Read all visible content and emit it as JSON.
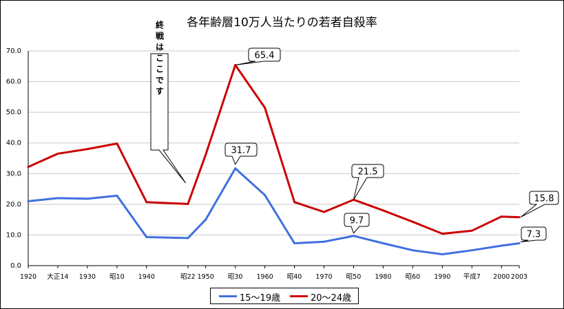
{
  "chart_data": {
    "type": "line",
    "title": "各年齢層10万人当たりの若者自殺率",
    "xlabel": "",
    "ylabel": "",
    "ylim": [
      0,
      70
    ],
    "yticks": [
      "0.0",
      "10.0",
      "20.0",
      "30.0",
      "40.0",
      "50.0",
      "60.0",
      "70.0"
    ],
    "categories": [
      "1920",
      "大正14",
      "1930",
      "昭10",
      "1940",
      "昭22",
      "1950",
      "昭30",
      "1960",
      "昭40",
      "1970",
      "昭50",
      "1980",
      "昭60",
      "1990",
      "平成7",
      "2000",
      "2003"
    ],
    "x": [
      1920,
      1925,
      1930,
      1935,
      1940,
      1947,
      1950,
      1955,
      1960,
      1965,
      1970,
      1975,
      1980,
      1985,
      1990,
      1995,
      2000,
      2003
    ],
    "series": [
      {
        "name": "15～19歳",
        "color": "#3f6fe0",
        "x": [
          1920,
          1925,
          1930,
          1935,
          1940,
          1947,
          1950,
          1955,
          1960,
          1965,
          1970,
          1975,
          1980,
          1985,
          1990,
          1995,
          2000,
          2003
        ],
        "values": [
          21.0,
          22.0,
          21.8,
          22.8,
          9.3,
          9.0,
          15.0,
          31.7,
          23.0,
          7.3,
          7.8,
          9.7,
          7.3,
          5.0,
          3.7,
          5.0,
          6.5,
          7.3
        ]
      },
      {
        "name": "20～24歳",
        "color": "#cc0000",
        "x": [
          1920,
          1925,
          1930,
          1935,
          1940,
          1947,
          1950,
          1955,
          1960,
          1965,
          1970,
          1975,
          1980,
          1985,
          1990,
          1995,
          2000,
          2003
        ],
        "values": [
          32.2,
          36.5,
          38.0,
          39.8,
          20.7,
          20.1,
          36.2,
          65.4,
          51.5,
          20.7,
          17.5,
          21.5,
          18.0,
          14.3,
          10.4,
          11.4,
          16.0,
          15.8
        ]
      }
    ],
    "annotations": [
      {
        "id": "war-end",
        "text": "終戦はここです",
        "x": 1946.5
      },
      {
        "id": "c-65-4",
        "text": "65.4",
        "series": 1,
        "x": 1955
      },
      {
        "id": "c-31-7",
        "text": "31.7",
        "series": 0,
        "x": 1955
      },
      {
        "id": "c-21-5",
        "text": "21.5",
        "series": 1,
        "x": 1975
      },
      {
        "id": "c-9-7",
        "text": "9.7",
        "series": 0,
        "x": 1975
      },
      {
        "id": "c-15-8",
        "text": "15.8",
        "series": 1,
        "x": 2003
      },
      {
        "id": "c-7-3",
        "text": "7.3",
        "series": 0,
        "x": 2003
      }
    ],
    "grid": true,
    "legend": "bottom-center"
  }
}
